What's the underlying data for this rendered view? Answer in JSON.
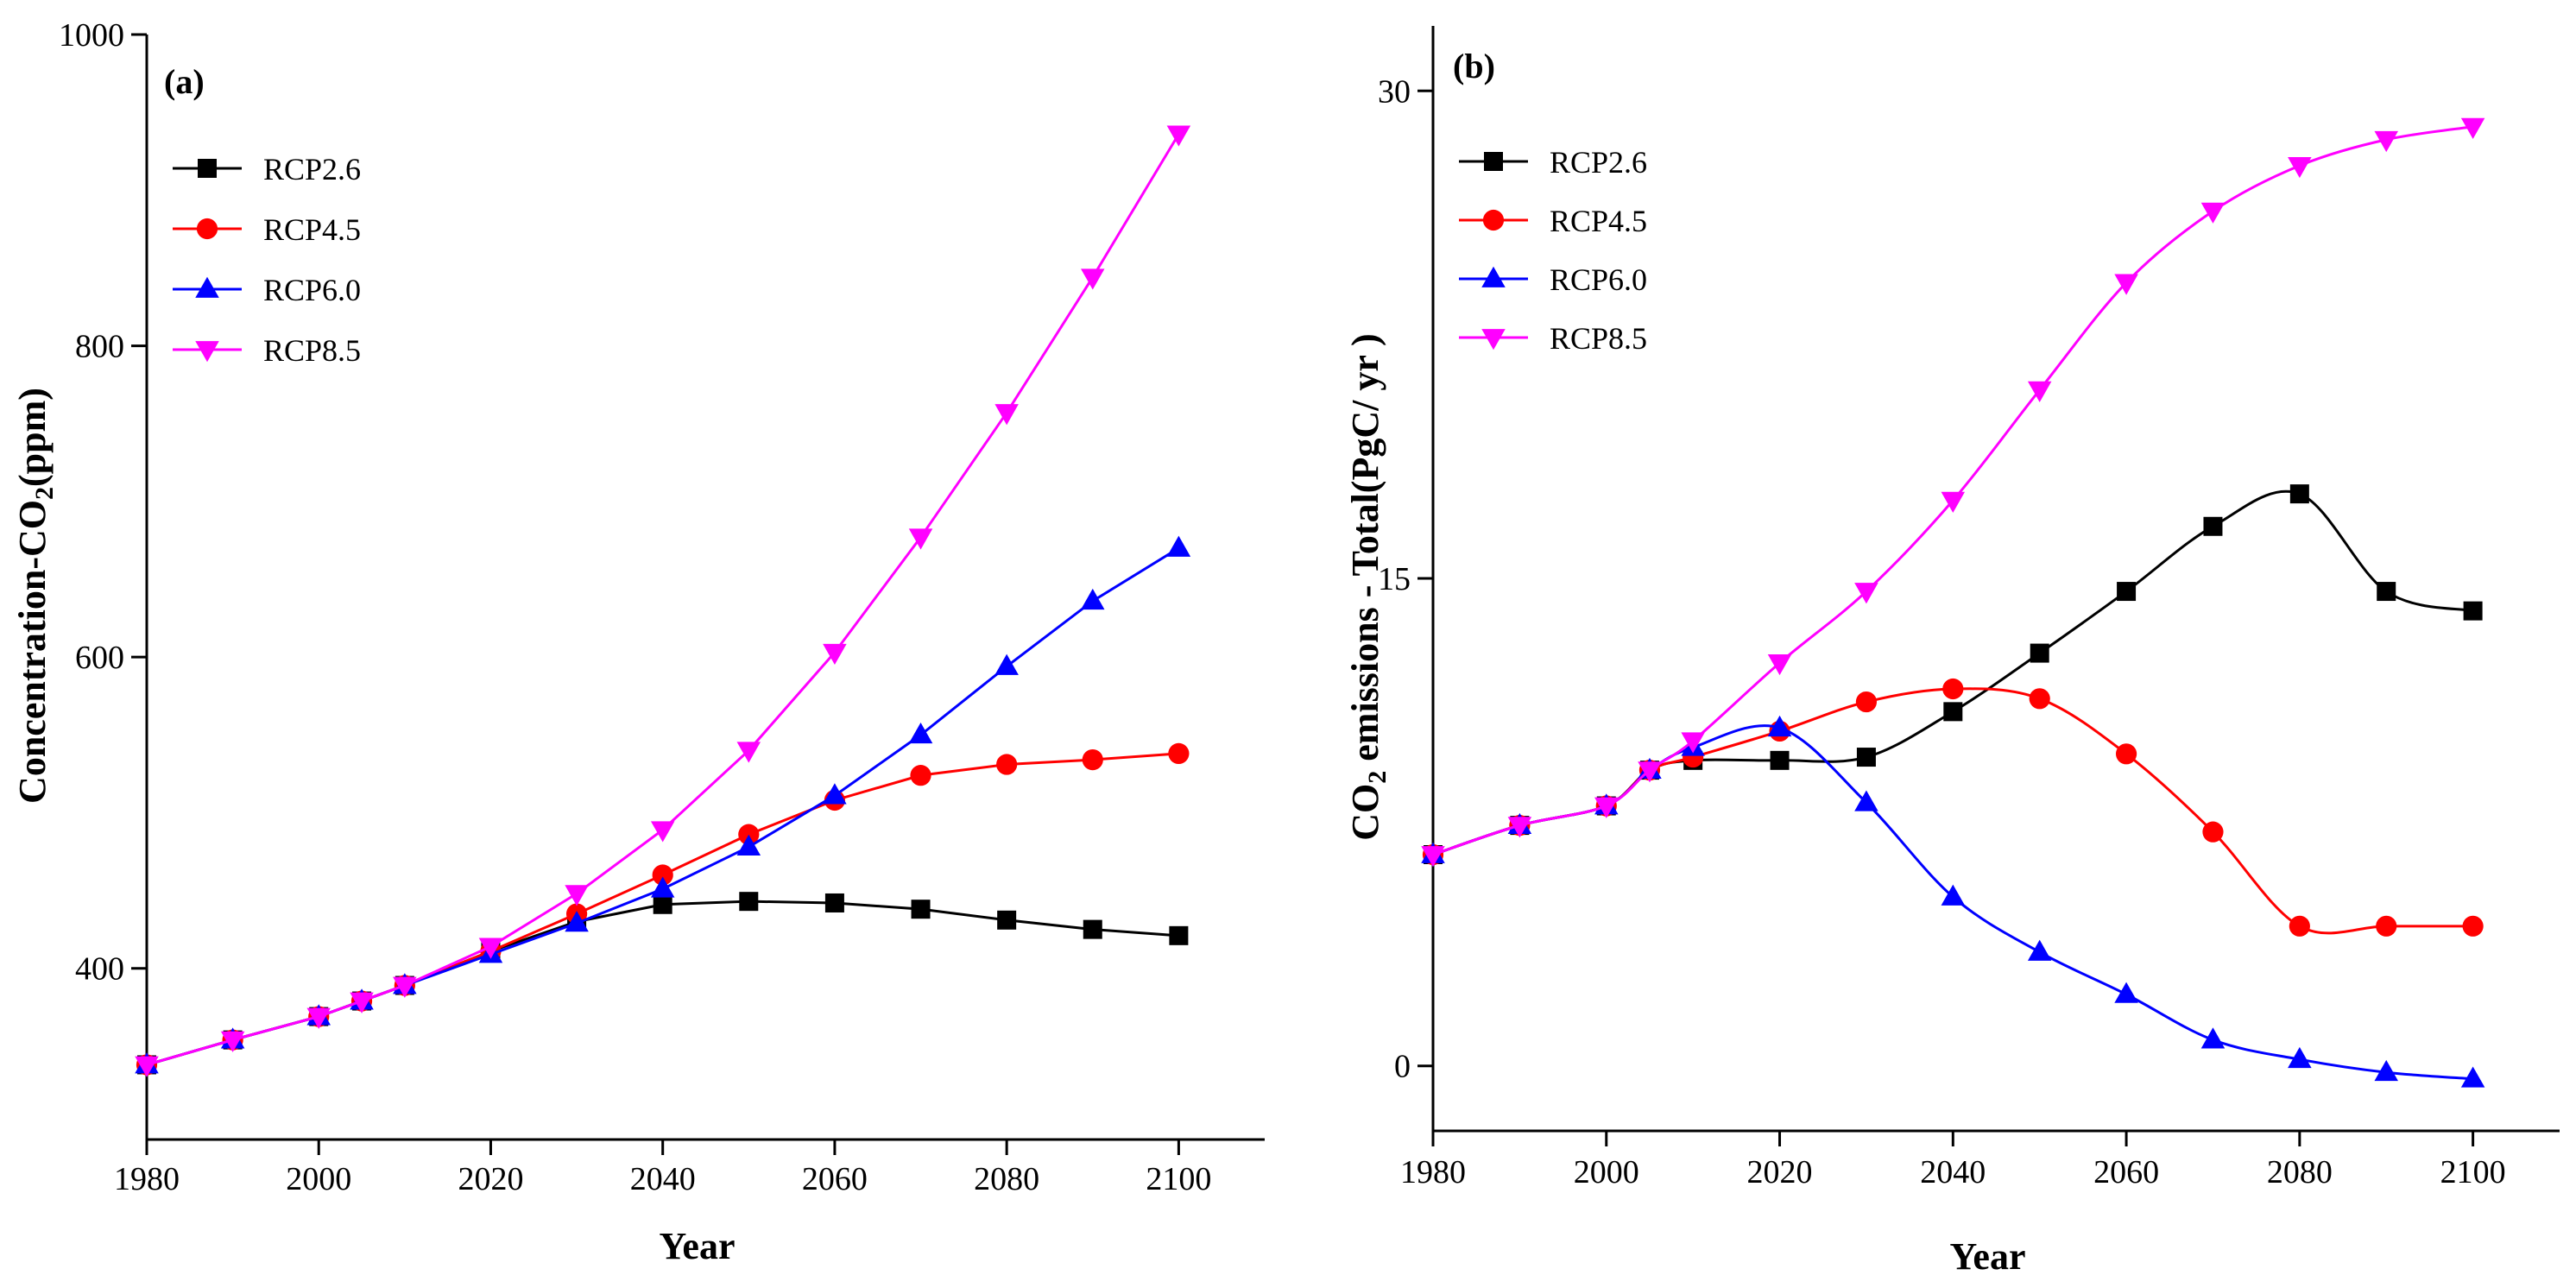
{
  "chart_data": [
    {
      "type": "line",
      "panel_label": "(a)",
      "title": "",
      "xlabel": "Year",
      "ylabel_prefix": "Concentration-CO",
      "ylabel_sub": "2",
      "ylabel_suffix": "(ppm)",
      "xlim": [
        1980,
        2110
      ],
      "ylim": [
        290,
        1000
      ],
      "xticks": [
        1980,
        2000,
        2020,
        2040,
        2060,
        2080,
        2100
      ],
      "yticks": [
        400,
        600,
        800,
        1000
      ],
      "legend_position": "top-left",
      "grid": false,
      "series": [
        {
          "name": "RCP2.6",
          "color": "#000000",
          "marker": "square",
          "x": [
            1980,
            1990,
            2000,
            2005,
            2010,
            2020,
            2030,
            2040,
            2050,
            2060,
            2070,
            2080,
            2090,
            2100
          ],
          "y": [
            338,
            354,
            369,
            379,
            389,
            411,
            430,
            441,
            443,
            442,
            438,
            431,
            425,
            421
          ]
        },
        {
          "name": "RCP4.5",
          "color": "#ff0000",
          "marker": "circle",
          "x": [
            1980,
            1990,
            2000,
            2005,
            2010,
            2020,
            2030,
            2040,
            2050,
            2060,
            2070,
            2080,
            2090,
            2100
          ],
          "y": [
            338,
            354,
            369,
            379,
            389,
            411,
            435,
            460,
            486,
            508,
            524,
            531,
            534,
            538
          ]
        },
        {
          "name": "RCP6.0",
          "color": "#0000ff",
          "marker": "triangle-up",
          "x": [
            1980,
            1990,
            2000,
            2005,
            2010,
            2020,
            2030,
            2040,
            2050,
            2060,
            2070,
            2080,
            2090,
            2100
          ],
          "y": [
            338,
            354,
            369,
            379,
            389,
            409,
            429,
            451,
            478,
            511,
            550,
            594,
            636,
            670
          ]
        },
        {
          "name": "RCP8.5",
          "color": "#ff00ff",
          "marker": "triangle-down",
          "x": [
            1980,
            1990,
            2000,
            2005,
            2010,
            2020,
            2030,
            2040,
            2050,
            2060,
            2070,
            2080,
            2090,
            2100
          ],
          "y": [
            338,
            354,
            369,
            379,
            389,
            414,
            448,
            489,
            540,
            603,
            677,
            757,
            844,
            936
          ]
        }
      ]
    },
    {
      "type": "line",
      "panel_label": "(b)",
      "title": "",
      "xlabel": "Year",
      "ylabel_prefix": "CO",
      "ylabel_sub": "2",
      "ylabel_suffix": " emissions - Total(PgC/ yr )",
      "xlim": [
        1980,
        2110
      ],
      "ylim": [
        -2,
        32
      ],
      "xticks": [
        1980,
        2000,
        2020,
        2040,
        2060,
        2080,
        2100
      ],
      "yticks": [
        0,
        15,
        30
      ],
      "legend_position": "top-left",
      "grid": false,
      "series": [
        {
          "name": "RCP2.6",
          "color": "#000000",
          "marker": "square",
          "x": [
            1980,
            1990,
            2000,
            2005,
            2010,
            2020,
            2030,
            2040,
            2050,
            2060,
            2070,
            2080,
            2090,
            2100
          ],
          "y": [
            6.5,
            7.4,
            8.0,
            9.1,
            9.4,
            9.4,
            9.5,
            10.9,
            12.7,
            14.6,
            16.6,
            17.6,
            14.6,
            14.0
          ]
        },
        {
          "name": "RCP4.5",
          "color": "#ff0000",
          "marker": "circle",
          "x": [
            1980,
            1990,
            2000,
            2005,
            2010,
            2020,
            2030,
            2040,
            2050,
            2060,
            2070,
            2080,
            2090,
            2100
          ],
          "y": [
            6.5,
            7.4,
            8.0,
            9.1,
            9.5,
            10.3,
            11.2,
            11.6,
            11.3,
            9.6,
            7.2,
            4.3,
            4.3,
            4.3
          ]
        },
        {
          "name": "RCP6.0",
          "color": "#0000ff",
          "marker": "triangle-up",
          "x": [
            1980,
            1990,
            2000,
            2005,
            2010,
            2020,
            2030,
            2040,
            2050,
            2060,
            2070,
            2080,
            2090,
            2100
          ],
          "y": [
            6.5,
            7.4,
            8.0,
            9.1,
            9.8,
            10.4,
            8.1,
            5.2,
            3.5,
            2.2,
            0.8,
            0.2,
            -0.2,
            -0.4
          ]
        },
        {
          "name": "RCP8.5",
          "color": "#ff00ff",
          "marker": "triangle-down",
          "x": [
            1980,
            1990,
            2000,
            2005,
            2010,
            2020,
            2030,
            2040,
            2050,
            2060,
            2070,
            2080,
            2090,
            2100
          ],
          "y": [
            6.5,
            7.4,
            8.0,
            9.1,
            10.0,
            12.4,
            14.6,
            17.4,
            20.8,
            24.1,
            26.3,
            27.7,
            28.5,
            28.9
          ]
        }
      ]
    }
  ]
}
